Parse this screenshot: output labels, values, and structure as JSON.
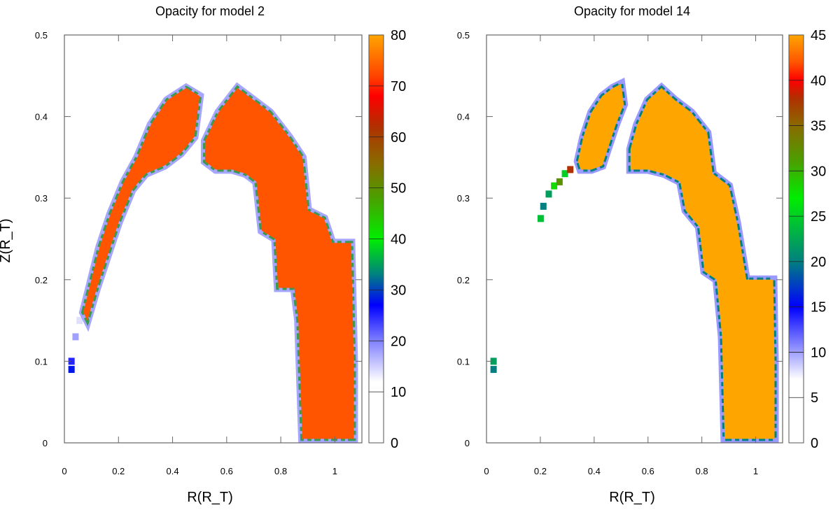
{
  "chart_data": [
    {
      "type": "heatmap",
      "title": "Opacity for model 2",
      "xlabel": "R(R_T)",
      "ylabel": "Z(R_T)",
      "xlim": [
        0,
        1.1
      ],
      "ylim": [
        0,
        0.5
      ],
      "xticks": [
        0,
        0.2,
        0.4,
        0.6,
        0.8,
        1
      ],
      "xtick_labels": [
        "0",
        "0.2",
        "0.4",
        "0.6",
        "0.8",
        "1"
      ],
      "yticks": [
        0,
        0.1,
        0.2,
        0.3,
        0.4,
        0.5
      ],
      "ytick_labels": [
        "0",
        "0.1",
        "0.2",
        "0.3",
        "0.4",
        "0.5"
      ],
      "colorbar": {
        "range": [
          0,
          80
        ],
        "ticks": [
          0,
          10,
          20,
          30,
          40,
          50,
          60,
          70,
          80
        ],
        "tick_labels": [
          "0",
          "10",
          "20",
          "30",
          "40",
          "50",
          "60",
          "70",
          "80"
        ],
        "stops": [
          [
            0,
            "#ffffff"
          ],
          [
            12,
            "#ffffff"
          ],
          [
            20,
            "#8080ff"
          ],
          [
            27,
            "#0000ff"
          ],
          [
            33,
            "#008080"
          ],
          [
            40,
            "#00ee00"
          ],
          [
            48,
            "#4aa000"
          ],
          [
            55,
            "#8a6a00"
          ],
          [
            62,
            "#b03000"
          ],
          [
            68,
            "#ff0000"
          ],
          [
            72,
            "#ff4400"
          ],
          [
            80,
            "#ffa500"
          ]
        ]
      },
      "core_value": 74,
      "core_color": "#ff5500",
      "edge_colors": [
        "#9090ff",
        "#3a9a50"
      ],
      "regions": [
        {
          "name": "left-arm",
          "outline": [
            [
              0.07,
              0.16
            ],
            [
              0.1,
              0.2
            ],
            [
              0.13,
              0.24
            ],
            [
              0.17,
              0.28
            ],
            [
              0.22,
              0.32
            ],
            [
              0.27,
              0.35
            ],
            [
              0.32,
              0.39
            ],
            [
              0.38,
              0.42
            ],
            [
              0.45,
              0.435
            ],
            [
              0.5,
              0.425
            ],
            [
              0.48,
              0.375
            ],
            [
              0.43,
              0.355
            ],
            [
              0.37,
              0.34
            ],
            [
              0.3,
              0.33
            ],
            [
              0.25,
              0.31
            ],
            [
              0.2,
              0.27
            ],
            [
              0.16,
              0.23
            ],
            [
              0.12,
              0.19
            ],
            [
              0.085,
              0.15
            ]
          ]
        },
        {
          "name": "right-arch",
          "outline": [
            [
              0.52,
              0.37
            ],
            [
              0.57,
              0.405
            ],
            [
              0.64,
              0.435
            ],
            [
              0.7,
              0.42
            ],
            [
              0.76,
              0.405
            ],
            [
              0.83,
              0.375
            ],
            [
              0.88,
              0.35
            ],
            [
              0.9,
              0.285
            ],
            [
              0.96,
              0.275
            ],
            [
              0.99,
              0.245
            ],
            [
              1.06,
              0.245
            ],
            [
              1.07,
              0.1
            ],
            [
              1.07,
              0.005
            ],
            [
              0.88,
              0.005
            ],
            [
              0.865,
              0.15
            ],
            [
              0.85,
              0.19
            ],
            [
              0.79,
              0.19
            ],
            [
              0.78,
              0.25
            ],
            [
              0.73,
              0.26
            ],
            [
              0.71,
              0.32
            ],
            [
              0.67,
              0.33
            ],
            [
              0.62,
              0.335
            ],
            [
              0.56,
              0.335
            ],
            [
              0.52,
              0.345
            ]
          ]
        }
      ],
      "spots": [
        [
          0.025,
          0.1,
          25
        ],
        [
          0.025,
          0.09,
          28
        ],
        [
          0.04,
          0.13,
          18
        ],
        [
          0.055,
          0.15,
          14
        ]
      ]
    },
    {
      "type": "heatmap",
      "title": "Opacity for model 14",
      "xlabel": "R(R_T)",
      "ylabel": "",
      "xlim": [
        0,
        1.1
      ],
      "ylim": [
        0,
        0.5
      ],
      "xticks": [
        0,
        0.2,
        0.4,
        0.6,
        0.8,
        1
      ],
      "xtick_labels": [
        "0",
        "0.2",
        "0.4",
        "0.6",
        "0.8",
        "1"
      ],
      "yticks": [
        0,
        0.1,
        0.2,
        0.3,
        0.4,
        0.5
      ],
      "ytick_labels": [
        "0",
        "0.1",
        "0.2",
        "0.3",
        "0.4",
        "0.5"
      ],
      "colorbar": {
        "range": [
          0,
          45
        ],
        "ticks": [
          0,
          5,
          10,
          15,
          20,
          25,
          30,
          35,
          40,
          45
        ],
        "tick_labels": [
          "0",
          "5",
          "10",
          "15",
          "20",
          "25",
          "30",
          "35",
          "40",
          "45"
        ],
        "stops": [
          [
            0,
            "#ffffff"
          ],
          [
            7,
            "#ffffff"
          ],
          [
            11,
            "#8080ff"
          ],
          [
            15,
            "#0000ff"
          ],
          [
            20,
            "#008080"
          ],
          [
            27,
            "#00ee00"
          ],
          [
            31,
            "#4aa000"
          ],
          [
            35,
            "#8a6a00"
          ],
          [
            38,
            "#b03000"
          ],
          [
            40,
            "#ff0000"
          ],
          [
            42,
            "#ff5500"
          ],
          [
            45,
            "#ffa500"
          ]
        ]
      },
      "core_value": 44,
      "core_color": "#ffa500",
      "edge_colors": [
        "#8080ff",
        "#008080"
      ],
      "regions": [
        {
          "name": "left-arm",
          "outline": [
            [
              0.34,
              0.345
            ],
            [
              0.36,
              0.375
            ],
            [
              0.39,
              0.405
            ],
            [
              0.43,
              0.425
            ],
            [
              0.47,
              0.435
            ],
            [
              0.5,
              0.44
            ],
            [
              0.51,
              0.415
            ],
            [
              0.48,
              0.39
            ],
            [
              0.45,
              0.36
            ],
            [
              0.43,
              0.34
            ],
            [
              0.39,
              0.335
            ],
            [
              0.35,
              0.335
            ]
          ]
        },
        {
          "name": "right-arch",
          "outline": [
            [
              0.535,
              0.36
            ],
            [
              0.56,
              0.39
            ],
            [
              0.6,
              0.42
            ],
            [
              0.65,
              0.435
            ],
            [
              0.7,
              0.42
            ],
            [
              0.76,
              0.405
            ],
            [
              0.82,
              0.38
            ],
            [
              0.84,
              0.33
            ],
            [
              0.9,
              0.315
            ],
            [
              0.93,
              0.27
            ],
            [
              0.965,
              0.2
            ],
            [
              1.065,
              0.2
            ],
            [
              1.07,
              0.1
            ],
            [
              1.07,
              0.005
            ],
            [
              0.885,
              0.005
            ],
            [
              0.875,
              0.13
            ],
            [
              0.855,
              0.2
            ],
            [
              0.81,
              0.21
            ],
            [
              0.79,
              0.265
            ],
            [
              0.74,
              0.285
            ],
            [
              0.72,
              0.32
            ],
            [
              0.66,
              0.33
            ],
            [
              0.6,
              0.335
            ],
            [
              0.535,
              0.335
            ]
          ]
        }
      ],
      "spots": [
        [
          0.2,
          0.275,
          24
        ],
        [
          0.21,
          0.29,
          20
        ],
        [
          0.23,
          0.305,
          22
        ],
        [
          0.25,
          0.315,
          28
        ],
        [
          0.27,
          0.32,
          32
        ],
        [
          0.29,
          0.33,
          25
        ],
        [
          0.31,
          0.335,
          38
        ],
        [
          0.025,
          0.1,
          22
        ],
        [
          0.025,
          0.09,
          20
        ]
      ]
    }
  ]
}
